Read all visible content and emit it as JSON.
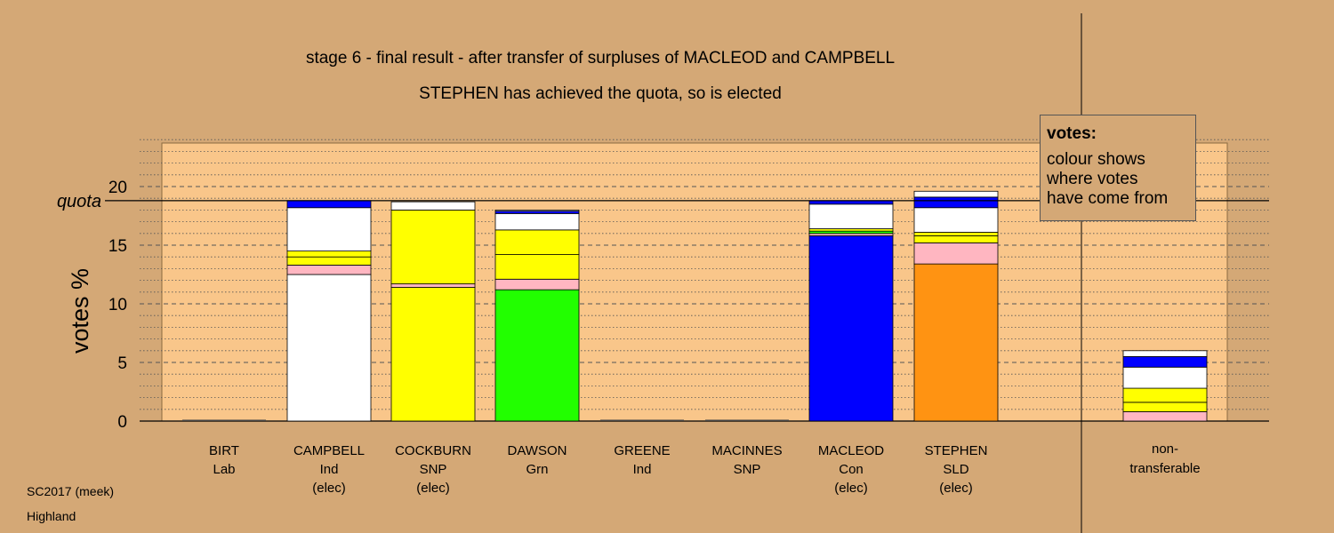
{
  "title": "stage 6 - final result - after transfer of surpluses of MACLEOD and CAMPBELL",
  "subtitle": "STEPHEN has achieved the quota, so is elected",
  "legend": {
    "title": "votes:",
    "lines": [
      "colour shows",
      "where votes",
      "have come from"
    ]
  },
  "footer": {
    "line1": "SC2017 (meek)",
    "line2": "Highland"
  },
  "colors": {
    "background": "#d4a876",
    "plot_bg": "#f9c68a",
    "independent": "#ffffff",
    "labour": "#ffb6c1",
    "snp": "#ffff00",
    "green": "#22ff00",
    "conservative": "#0000ff",
    "libdem": "#ff9312"
  },
  "chart_data": {
    "type": "bar",
    "stacked": true,
    "ylabel": "votes %",
    "quota_label": "quota",
    "quota": 18.8,
    "ylim": [
      0,
      24
    ],
    "yticks": [
      0,
      5,
      10,
      15,
      20
    ],
    "grid": true,
    "categories": [
      {
        "name": "BIRT",
        "party": "Lab",
        "status": ""
      },
      {
        "name": "CAMPBELL",
        "party": "Ind",
        "status": "(elec)"
      },
      {
        "name": "COCKBURN",
        "party": "SNP",
        "status": "(elec)"
      },
      {
        "name": "DAWSON",
        "party": "Grn",
        "status": ""
      },
      {
        "name": "GREENE",
        "party": "Ind",
        "status": ""
      },
      {
        "name": "MACINNES",
        "party": "SNP",
        "status": ""
      },
      {
        "name": "MACLEOD",
        "party": "Con",
        "status": "(elec)"
      },
      {
        "name": "STEPHEN",
        "party": "SLD",
        "status": "(elec)"
      }
    ],
    "nontransferable_label": [
      "non-",
      "transferable"
    ],
    "stacks": [
      [],
      [
        {
          "color": "#ffffff",
          "value": 12.5
        },
        {
          "color": "#ffb6c1",
          "value": 0.8
        },
        {
          "color": "#ffff00",
          "value": 0.7
        },
        {
          "color": "#ffff00",
          "value": 0.5
        },
        {
          "color": "#ffffff",
          "value": 3.7
        },
        {
          "color": "#0000ff",
          "value": 0.6
        }
      ],
      [
        {
          "color": "#ffff00",
          "value": 11.4
        },
        {
          "color": "#ffb6c1",
          "value": 0.3
        },
        {
          "color": "#ffff00",
          "value": 6.3
        },
        {
          "color": "#ffffff",
          "value": 0.7
        }
      ],
      [
        {
          "color": "#22ff00",
          "value": 11.2
        },
        {
          "color": "#ffb6c1",
          "value": 0.9
        },
        {
          "color": "#ffff00",
          "value": 2.1
        },
        {
          "color": "#ffff00",
          "value": 2.1
        },
        {
          "color": "#ffffff",
          "value": 1.4
        },
        {
          "color": "#0000ff",
          "value": 0.2
        },
        {
          "color": "#ffffff",
          "value": 0.1
        }
      ],
      [],
      [],
      [
        {
          "color": "#0000ff",
          "value": 15.8
        },
        {
          "color": "#ffb6c1",
          "value": 0.2
        },
        {
          "color": "#22ff00",
          "value": 0.2
        },
        {
          "color": "#ffff00",
          "value": 0.2
        },
        {
          "color": "#ffffff",
          "value": 2.1
        },
        {
          "color": "#0000ff",
          "value": 0.3
        }
      ],
      [
        {
          "color": "#ff9312",
          "value": 13.4
        },
        {
          "color": "#ffb6c1",
          "value": 1.8
        },
        {
          "color": "#ffff00",
          "value": 0.6
        },
        {
          "color": "#ffff00",
          "value": 0.3
        },
        {
          "color": "#ffffff",
          "value": 2.1
        },
        {
          "color": "#0000ff",
          "value": 0.9
        },
        {
          "color": "#ffffff",
          "value": 0.5
        }
      ]
    ],
    "nontransferable": [
      {
        "color": "#ffb6c1",
        "value": 0.8
      },
      {
        "color": "#ffff00",
        "value": 0.8
      },
      {
        "color": "#ffff00",
        "value": 1.2
      },
      {
        "color": "#ffffff",
        "value": 1.8
      },
      {
        "color": "#0000ff",
        "value": 0.9
      },
      {
        "color": "#ffffff",
        "value": 0.5
      }
    ]
  }
}
